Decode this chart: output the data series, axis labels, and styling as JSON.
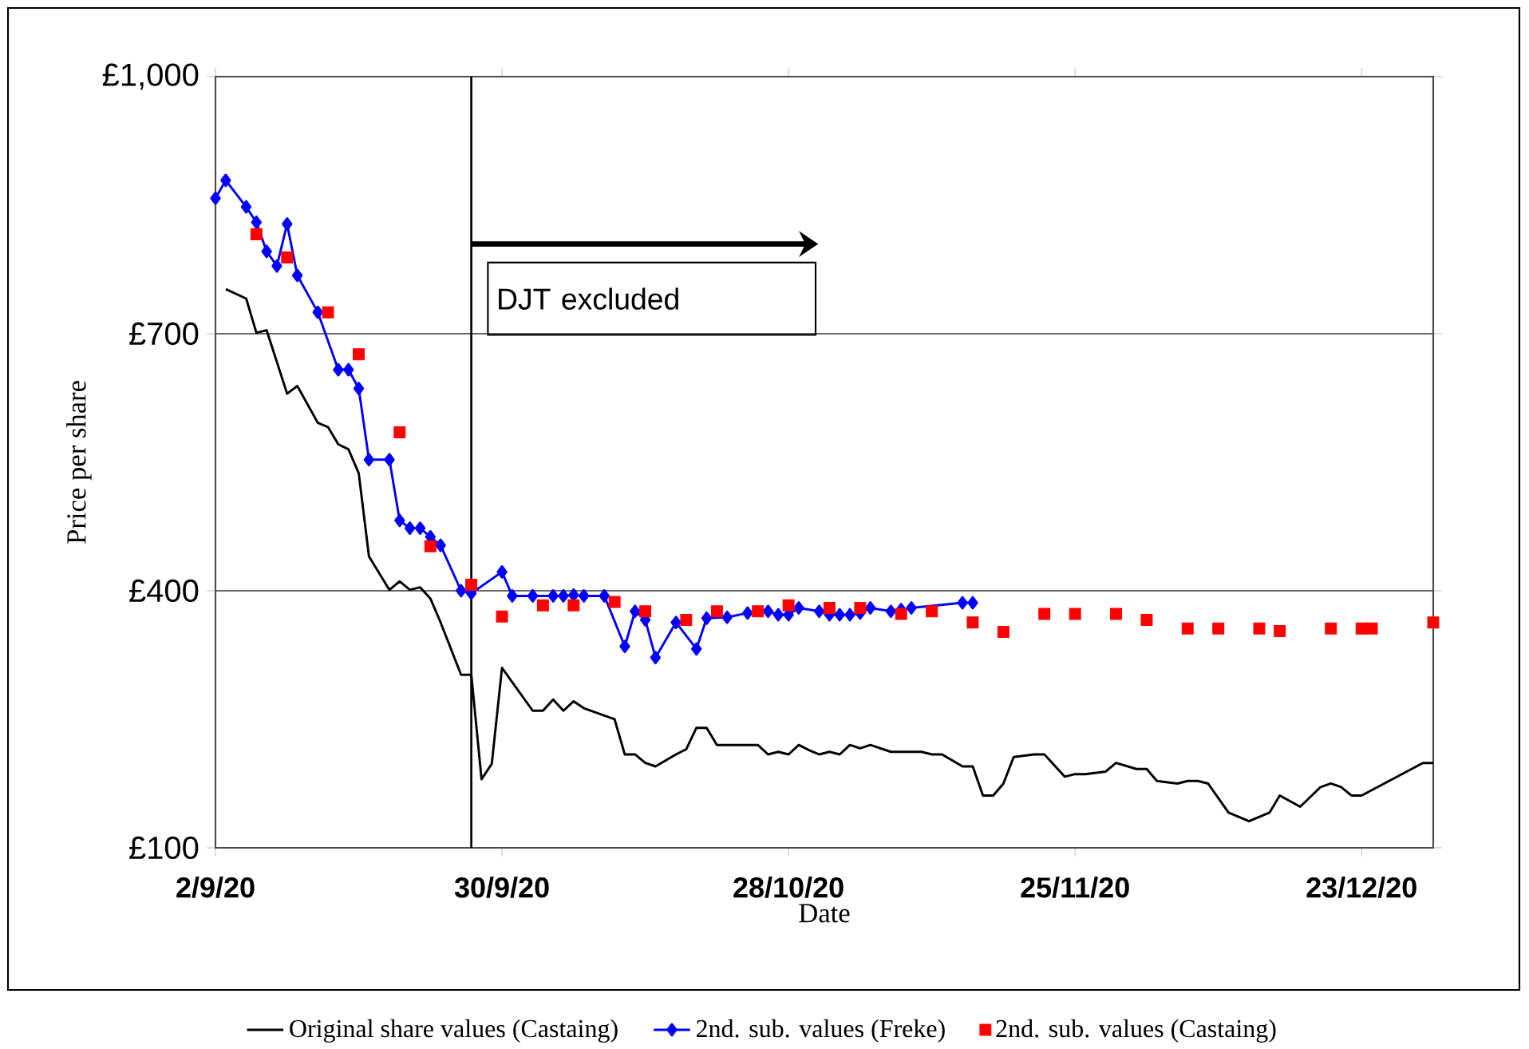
{
  "chart_data": {
    "type": "line",
    "xlabel": "Date",
    "ylabel": "Price per share",
    "xlim": [
      "2020-09-02",
      "2020-12-30"
    ],
    "ylim": [
      100,
      1000
    ],
    "xticks": [
      {
        "value": "2020-09-02",
        "label": "2/9/20"
      },
      {
        "value": "2020-09-30",
        "label": "30/9/20"
      },
      {
        "value": "2020-10-28",
        "label": "28/10/20"
      },
      {
        "value": "2020-11-25",
        "label": "25/11/20"
      },
      {
        "value": "2020-12-23",
        "label": "23/12/20"
      }
    ],
    "yticks": [
      {
        "value": 100,
        "label": "£100"
      },
      {
        "value": 400,
        "label": "£400"
      },
      {
        "value": 700,
        "label": "£700"
      },
      {
        "value": 1000,
        "label": "£1,000"
      }
    ],
    "grid": "y",
    "legend": "bottom",
    "ref_lines": [
      {
        "axis": "x",
        "value": "2020-09-27",
        "color": "#000000"
      }
    ],
    "annotations": [
      "DJT excluded"
    ],
    "series": [
      {
        "name": "Original share values (Castaing)",
        "color": "#000000",
        "marker": "none",
        "x": [
          "2020-09-03",
          "2020-09-05",
          "2020-09-06",
          "2020-09-07",
          "2020-09-09",
          "2020-09-10",
          "2020-09-12",
          "2020-09-13",
          "2020-09-14",
          "2020-09-15",
          "2020-09-16",
          "2020-09-17",
          "2020-09-19",
          "2020-09-20",
          "2020-09-21",
          "2020-09-22",
          "2020-09-23",
          "2020-09-24",
          "2020-09-26",
          "2020-09-27",
          "2020-09-28",
          "2020-09-29",
          "2020-09-30",
          "2020-10-03",
          "2020-10-04",
          "2020-10-05",
          "2020-10-06",
          "2020-10-07",
          "2020-10-08",
          "2020-10-11",
          "2020-10-12",
          "2020-10-13",
          "2020-10-14",
          "2020-10-15",
          "2020-10-17",
          "2020-10-18",
          "2020-10-19",
          "2020-10-20",
          "2020-10-21",
          "2020-10-25",
          "2020-10-26",
          "2020-10-27",
          "2020-10-28",
          "2020-10-29",
          "2020-10-30",
          "2020-10-31",
          "2020-11-01",
          "2020-11-02",
          "2020-11-03",
          "2020-11-04",
          "2020-11-05",
          "2020-11-07",
          "2020-11-10",
          "2020-11-11",
          "2020-11-12",
          "2020-11-14",
          "2020-11-15",
          "2020-11-16",
          "2020-11-17",
          "2020-11-18",
          "2020-11-19",
          "2020-11-21",
          "2020-11-22",
          "2020-11-24",
          "2020-11-25",
          "2020-11-26",
          "2020-11-28",
          "2020-11-29",
          "2020-12-01",
          "2020-12-02",
          "2020-12-03",
          "2020-12-05",
          "2020-12-06",
          "2020-12-07",
          "2020-12-08",
          "2020-12-10",
          "2020-12-12",
          "2020-12-14",
          "2020-12-15",
          "2020-12-17",
          "2020-12-19",
          "2020-12-20",
          "2020-12-21",
          "2020-12-22",
          "2020-12-23",
          "2020-12-29",
          "2020-12-30"
        ],
        "values": [
          752,
          741,
          701,
          704,
          630,
          639,
          596,
          591,
          571,
          565,
          537,
          440,
          401,
          411,
          401,
          404,
          391,
          363,
          302,
          302,
          180,
          198,
          310,
          260,
          260,
          273,
          260,
          271,
          263,
          250,
          209,
          209,
          199,
          195,
          209,
          215,
          240,
          240,
          220,
          220,
          209,
          212,
          209,
          220,
          214,
          209,
          212,
          209,
          220,
          216,
          220,
          212,
          212,
          209,
          209,
          195,
          195,
          161,
          161,
          175,
          206,
          209,
          209,
          183,
          186,
          186,
          189,
          199,
          192,
          192,
          178,
          175,
          178,
          178,
          175,
          141,
          131,
          141,
          161,
          148,
          171,
          175,
          171,
          161,
          161,
          199,
          199
        ]
      },
      {
        "name": "2nd. sub. values (Freke)",
        "color": "#0000ff",
        "marker": "diamond",
        "x": [
          "2020-09-02",
          "2020-09-03",
          "2020-09-05",
          "2020-09-06",
          "2020-09-07",
          "2020-09-08",
          "2020-09-09",
          "2020-09-10",
          "2020-09-12",
          "2020-09-14",
          "2020-09-15",
          "2020-09-16",
          "2020-09-17",
          "2020-09-19",
          "2020-09-20",
          "2020-09-21",
          "2020-09-22",
          "2020-09-23",
          "2020-09-24",
          "2020-09-26",
          "2020-09-27",
          "2020-09-30",
          "2020-10-01",
          "2020-10-03",
          "2020-10-05",
          "2020-10-06",
          "2020-10-07",
          "2020-10-08",
          "2020-10-10",
          "2020-10-12",
          "2020-10-13",
          "2020-10-14",
          "2020-10-15",
          "2020-10-17",
          "2020-10-19",
          "2020-10-20",
          "2020-10-22",
          "2020-10-24",
          "2020-10-26",
          "2020-10-27",
          "2020-10-28",
          "2020-10-29",
          "2020-10-31",
          "2020-11-01",
          "2020-11-02",
          "2020-11-03",
          "2020-11-04",
          "2020-11-05",
          "2020-11-07",
          "2020-11-08",
          "2020-11-09",
          "2020-11-14",
          "2020-11-15"
        ],
        "values": [
          858,
          879,
          848,
          830,
          796,
          779,
          828,
          768,
          725,
          658,
          658,
          636,
          553,
          553,
          482,
          473,
          473,
          463,
          453,
          400,
          397,
          422,
          394,
          394,
          394,
          394,
          395,
          394,
          394,
          335,
          376,
          366,
          322,
          363,
          332,
          368,
          369,
          374,
          376,
          372,
          372,
          380,
          376,
          372,
          372,
          372,
          374,
          380,
          376,
          378,
          380,
          386,
          386
        ]
      },
      {
        "name": "2nd. sub. values (Castaing)",
        "color": "#ff0000",
        "type": "scatter",
        "marker": "square",
        "x": [
          "2020-09-06",
          "2020-09-09",
          "2020-09-13",
          "2020-09-16",
          "2020-09-20",
          "2020-09-23",
          "2020-09-27",
          "2020-09-30",
          "2020-10-04",
          "2020-10-07",
          "2020-10-11",
          "2020-10-14",
          "2020-10-18",
          "2020-10-21",
          "2020-10-25",
          "2020-10-28",
          "2020-11-01",
          "2020-11-04",
          "2020-11-08",
          "2020-11-11",
          "2020-11-15",
          "2020-11-18",
          "2020-11-22",
          "2020-11-25",
          "2020-11-29",
          "2020-12-02",
          "2020-12-06",
          "2020-12-09",
          "2020-12-13",
          "2020-12-15",
          "2020-12-20",
          "2020-12-23",
          "2020-12-24",
          "2020-12-30"
        ],
        "values": [
          816,
          789,
          725,
          676,
          585,
          452,
          407,
          370,
          383,
          383,
          387,
          376,
          366,
          376,
          376,
          383,
          380,
          380,
          373,
          376,
          363,
          352,
          373,
          373,
          373,
          366,
          356,
          356,
          356,
          353,
          356,
          356,
          356,
          363
        ]
      }
    ]
  }
}
